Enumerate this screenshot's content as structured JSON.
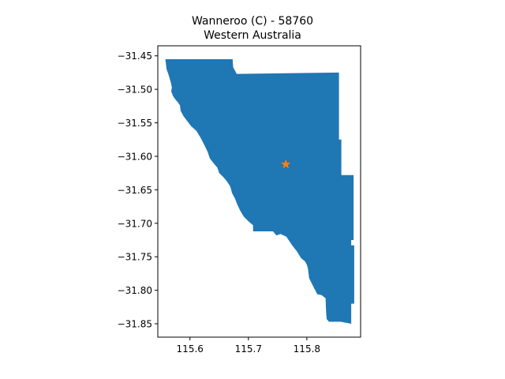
{
  "title": {
    "line1": "Wanneroo (C) - 58760",
    "line2": "Western Australia"
  },
  "chart_data": {
    "type": "map",
    "title": "Wanneroo (C) - 58760\nWestern Australia",
    "xlabel": "",
    "ylabel": "",
    "xlim": [
      115.545,
      115.892
    ],
    "ylim": [
      -31.87,
      -31.435
    ],
    "x_ticks": [
      {
        "value": 115.6,
        "label": "115.6"
      },
      {
        "value": 115.7,
        "label": "115.7"
      },
      {
        "value": 115.8,
        "label": "115.8"
      }
    ],
    "y_ticks": [
      {
        "value": -31.45,
        "label": "−31.45"
      },
      {
        "value": -31.5,
        "label": "−31.50"
      },
      {
        "value": -31.55,
        "label": "−31.55"
      },
      {
        "value": -31.6,
        "label": "−31.60"
      },
      {
        "value": -31.65,
        "label": "−31.65"
      },
      {
        "value": -31.7,
        "label": "−31.70"
      },
      {
        "value": -31.75,
        "label": "−31.75"
      },
      {
        "value": -31.8,
        "label": "−31.80"
      },
      {
        "value": -31.85,
        "label": "−31.85"
      }
    ],
    "grid": false,
    "region": {
      "color": "#1f77b4",
      "boundary": [
        [
          115.558,
          -31.455
        ],
        [
          115.673,
          -31.455
        ],
        [
          115.674,
          -31.467
        ],
        [
          115.68,
          -31.477
        ],
        [
          115.855,
          -31.475
        ],
        [
          115.855,
          -31.5
        ],
        [
          115.855,
          -31.575
        ],
        [
          115.859,
          -31.575
        ],
        [
          115.859,
          -31.628
        ],
        [
          115.88,
          -31.628
        ],
        [
          115.88,
          -31.725
        ],
        [
          115.876,
          -31.725
        ],
        [
          115.876,
          -31.733
        ],
        [
          115.881,
          -31.733
        ],
        [
          115.881,
          -31.82
        ],
        [
          115.876,
          -31.82
        ],
        [
          115.876,
          -31.85
        ],
        [
          115.858,
          -31.847
        ],
        [
          115.838,
          -31.847
        ],
        [
          115.834,
          -31.843
        ],
        [
          115.833,
          -31.833
        ],
        [
          115.832,
          -31.812
        ],
        [
          115.825,
          -31.807
        ],
        [
          115.818,
          -31.806
        ],
        [
          115.812,
          -31.796
        ],
        [
          115.804,
          -31.782
        ],
        [
          115.802,
          -31.768
        ],
        [
          115.8,
          -31.762
        ],
        [
          115.797,
          -31.757
        ],
        [
          115.79,
          -31.752
        ],
        [
          115.783,
          -31.742
        ],
        [
          115.775,
          -31.733
        ],
        [
          115.765,
          -31.72
        ],
        [
          115.755,
          -31.716
        ],
        [
          115.748,
          -31.718
        ],
        [
          115.742,
          -31.712
        ],
        [
          115.732,
          -31.712
        ],
        [
          115.72,
          -31.712
        ],
        [
          115.708,
          -31.712
        ],
        [
          115.708,
          -31.703
        ],
        [
          115.7,
          -31.697
        ],
        [
          115.692,
          -31.69
        ],
        [
          115.686,
          -31.681
        ],
        [
          115.681,
          -31.672
        ],
        [
          115.677,
          -31.663
        ],
        [
          115.672,
          -31.655
        ],
        [
          115.669,
          -31.645
        ],
        [
          115.663,
          -31.637
        ],
        [
          115.656,
          -31.63
        ],
        [
          115.65,
          -31.625
        ],
        [
          115.647,
          -31.617
        ],
        [
          115.64,
          -31.61
        ],
        [
          115.634,
          -31.603
        ],
        [
          115.63,
          -31.593
        ],
        [
          115.624,
          -31.582
        ],
        [
          115.618,
          -31.572
        ],
        [
          115.611,
          -31.562
        ],
        [
          115.602,
          -31.555
        ],
        [
          115.595,
          -31.547
        ],
        [
          115.589,
          -31.54
        ],
        [
          115.584,
          -31.532
        ],
        [
          115.583,
          -31.524
        ],
        [
          115.579,
          -31.519
        ],
        [
          115.575,
          -31.515
        ],
        [
          115.571,
          -31.51
        ],
        [
          115.568,
          -31.503
        ],
        [
          115.569,
          -31.497
        ],
        [
          115.567,
          -31.489
        ],
        [
          115.563,
          -31.477
        ],
        [
          115.56,
          -31.47
        ]
      ]
    },
    "marker": {
      "x": 115.764,
      "y": -31.612,
      "symbol": "star",
      "color": "#ff7f0e"
    }
  }
}
